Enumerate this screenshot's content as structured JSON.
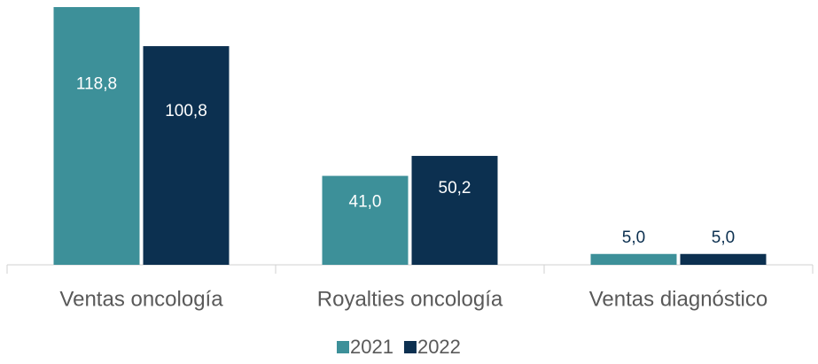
{
  "chart_data": {
    "type": "bar",
    "categories": [
      "Ventas oncología",
      "Royalties oncología",
      "Ventas diagnóstico"
    ],
    "series": [
      {
        "name": "2021",
        "color": "#3d9099",
        "values": [
          118.8,
          41.0,
          5.0
        ],
        "value_labels": [
          "118,8",
          "41,0",
          "5,0"
        ]
      },
      {
        "name": "2022",
        "color": "#0c3050",
        "values": [
          100.8,
          50.2,
          5.0
        ],
        "value_labels": [
          "100,8",
          "50,2",
          "5,0"
        ]
      }
    ]
  }
}
